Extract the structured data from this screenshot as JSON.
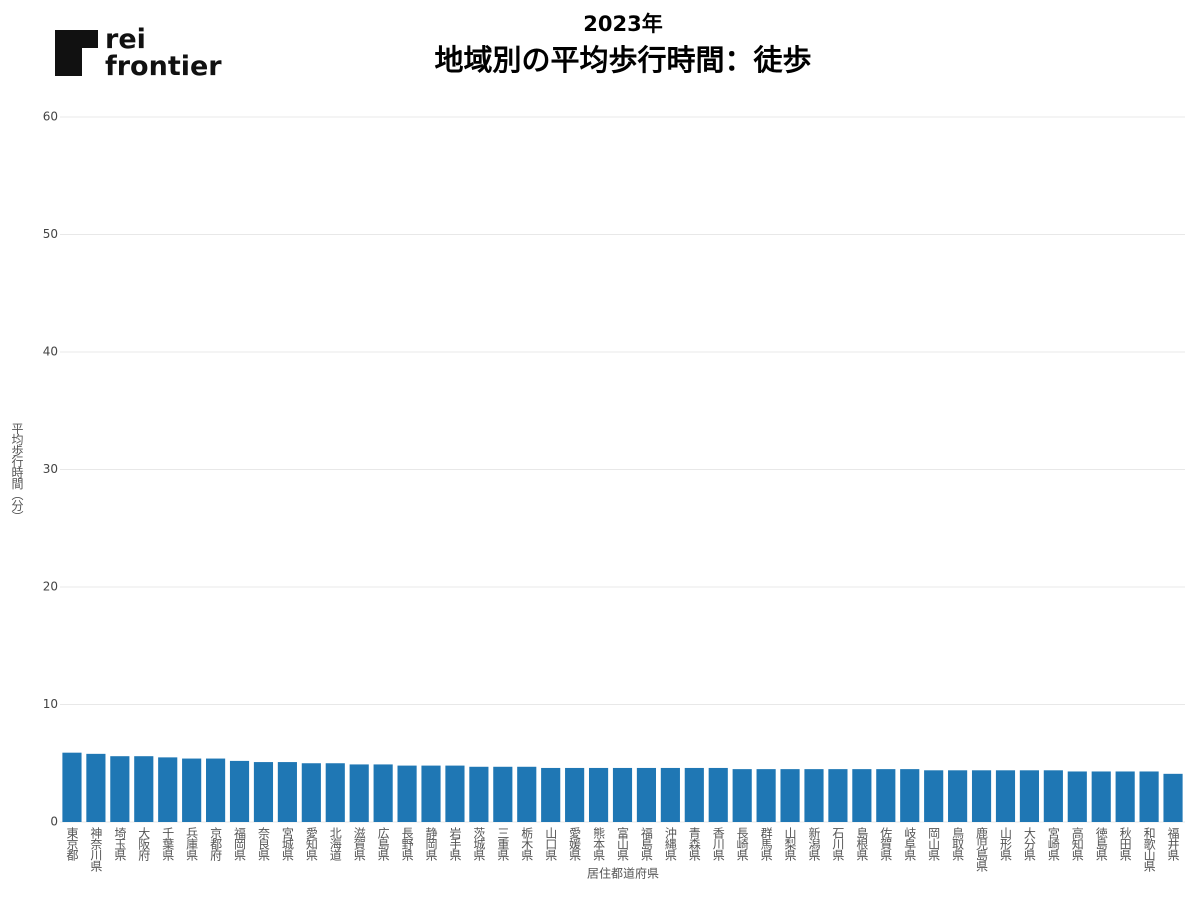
{
  "logo": [
    "rei",
    "frontier"
  ],
  "chart_data": {
    "type": "bar",
    "subtitle": "2023年",
    "title": "地域別の平均歩行時間：徒歩",
    "x_label": "居住都道府県",
    "y_label": "平均歩行時間（分）",
    "categories": [
      "東京都",
      "神奈川県",
      "埼玉県",
      "大阪府",
      "千葉県",
      "兵庫県",
      "京都府",
      "福岡県",
      "奈良県",
      "宮城県",
      "愛知県",
      "北海道",
      "滋賀県",
      "広島県",
      "長野県",
      "静岡県",
      "岩手県",
      "茨城県",
      "三重県",
      "栃木県",
      "山口県",
      "愛媛県",
      "熊本県",
      "富山県",
      "福島県",
      "沖縄県",
      "青森県",
      "香川県",
      "長崎県",
      "群馬県",
      "山梨県",
      "新潟県",
      "石川県",
      "島根県",
      "佐賀県",
      "岐阜県",
      "岡山県",
      "鳥取県",
      "鹿児島県",
      "山形県",
      "大分県",
      "宮崎県",
      "高知県",
      "徳島県",
      "秋田県",
      "和歌山県",
      "福井県"
    ],
    "values": [
      5.9,
      5.8,
      5.6,
      5.6,
      5.5,
      5.4,
      5.4,
      5.2,
      5.1,
      5.1,
      5.0,
      5.0,
      4.9,
      4.9,
      4.8,
      4.8,
      4.8,
      4.7,
      4.7,
      4.7,
      4.6,
      4.6,
      4.6,
      4.6,
      4.6,
      4.6,
      4.6,
      4.6,
      4.5,
      4.5,
      4.5,
      4.5,
      4.5,
      4.5,
      4.5,
      4.5,
      4.4,
      4.4,
      4.4,
      4.4,
      4.4,
      4.4,
      4.3,
      4.3,
      4.3,
      4.3,
      4.1
    ],
    "color": "#1f77b4",
    "ylim": [
      0,
      60
    ],
    "yticks": [
      0,
      10,
      20,
      30,
      40,
      50,
      60
    ],
    "grid": true
  }
}
